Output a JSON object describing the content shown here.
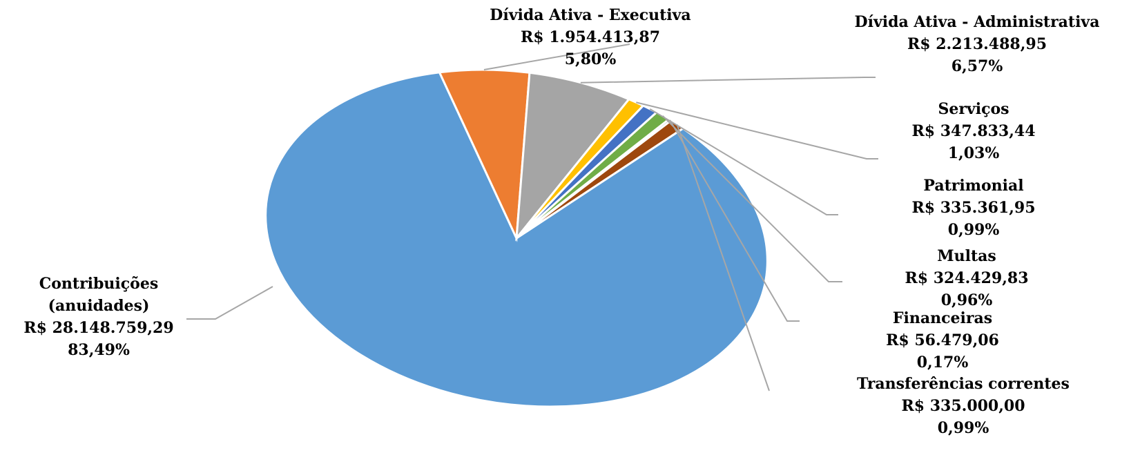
{
  "chart_data": {
    "type": "pie",
    "currency": "R$",
    "slices": [
      {
        "name": "Contribuições (anuidades)",
        "value": 28148759.29,
        "value_label": "R$ 28.148.759,29",
        "percent": 83.49,
        "percent_label": "83,49%",
        "color": "#5b9bd5"
      },
      {
        "name": "Dívida Ativa - Executiva",
        "value": 1954413.87,
        "value_label": "R$ 1.954.413,87",
        "percent": 5.8,
        "percent_label": "5,80%",
        "color": "#ed7d31"
      },
      {
        "name": "Dívida Ativa - Administrativa",
        "value": 2213488.95,
        "value_label": "R$ 2.213.488,95",
        "percent": 6.57,
        "percent_label": "6,57%",
        "color": "#a5a5a5"
      },
      {
        "name": "Serviços",
        "value": 347833.44,
        "value_label": "R$ 347.833,44",
        "percent": 1.03,
        "percent_label": "1,03%",
        "color": "#ffc000"
      },
      {
        "name": "Patrimonial",
        "value": 335361.95,
        "value_label": "R$ 335.361,95",
        "percent": 0.99,
        "percent_label": "0,99%",
        "color": "#4472c4"
      },
      {
        "name": "Multas",
        "value": 324429.83,
        "value_label": "R$ 324.429,83",
        "percent": 0.96,
        "percent_label": "0,96%",
        "color": "#70ad47"
      },
      {
        "name": "Financeiras",
        "value": 56479.06,
        "value_label": "R$ 56.479,06",
        "percent": 0.17,
        "percent_label": "0,17%",
        "color": "#264478"
      },
      {
        "name": "Transferências correntes",
        "value": 335000.0,
        "value_label": "R$ 335.000,00",
        "percent": 0.99,
        "percent_label": "0,99%",
        "color": "#9e480e"
      }
    ]
  }
}
